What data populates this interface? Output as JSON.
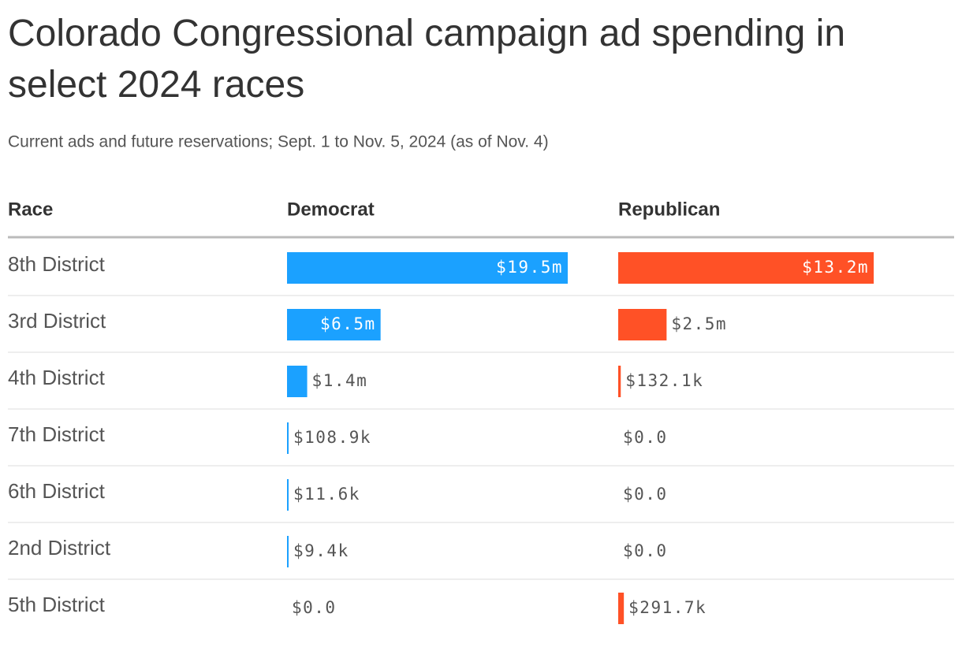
{
  "chart_data": {
    "type": "bar-table",
    "title": "Colorado Congressional campaign ad spending in select 2024 races",
    "subtitle": "Current ads and future reservations; Sept. 1 to Nov. 5, 2024 (as of Nov. 4)",
    "category_header": "Race",
    "categories": [
      "8th District",
      "3rd District",
      "4th District",
      "7th District",
      "6th District",
      "2nd District",
      "5th District"
    ],
    "series": [
      {
        "name": "Democrat",
        "color": "#1ba1ff",
        "values": [
          19500000,
          6500000,
          1400000,
          108900,
          11600,
          9400,
          0
        ],
        "value_labels": [
          "$19.5m",
          "$6.5m",
          "$1.4m",
          "$108.9k",
          "$11.6k",
          "$9.4k",
          "$0.0"
        ]
      },
      {
        "name": "Republican",
        "color": "#ff5126",
        "values": [
          13200000,
          2500000,
          132100,
          0,
          0,
          0,
          291700
        ],
        "value_labels": [
          "$13.2m",
          "$2.5m",
          "$132.1k",
          "$0.0",
          "$0.0",
          "$0.0",
          "$291.7k"
        ]
      }
    ]
  }
}
